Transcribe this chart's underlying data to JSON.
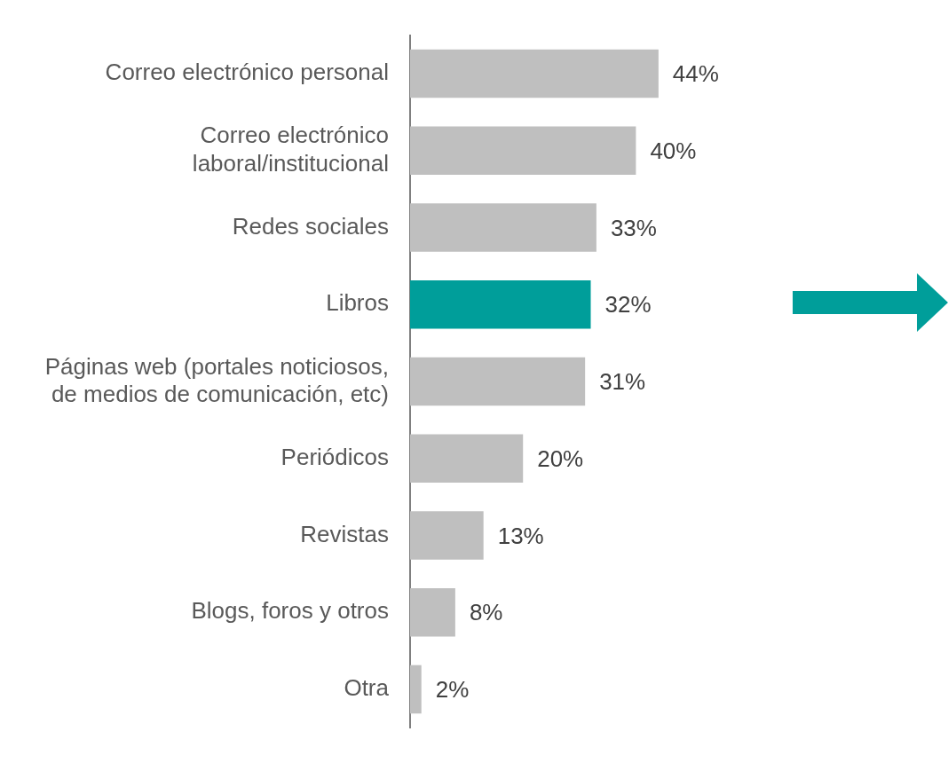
{
  "chart_data": {
    "type": "bar",
    "orientation": "horizontal",
    "categories": [
      "Correo electrónico personal",
      "Correo electrónico\nlaboral/institucional",
      "Redes sociales",
      "Libros",
      "Páginas web (portales noticiosos,\nde medios de comunicación, etc)",
      "Periódicos",
      "Revistas",
      "Blogs, foros y otros",
      "Otra"
    ],
    "values": [
      44,
      40,
      33,
      32,
      31,
      20,
      13,
      8,
      2
    ],
    "value_labels": [
      "44%",
      "40%",
      "33%",
      "32%",
      "31%",
      "20%",
      "13%",
      "8%",
      "2%"
    ],
    "colors": [
      "#bfbfbf",
      "#bfbfbf",
      "#bfbfbf",
      "#009e9a",
      "#bfbfbf",
      "#bfbfbf",
      "#bfbfbf",
      "#bfbfbf",
      "#bfbfbf"
    ],
    "grid": false,
    "legend": false
  }
}
